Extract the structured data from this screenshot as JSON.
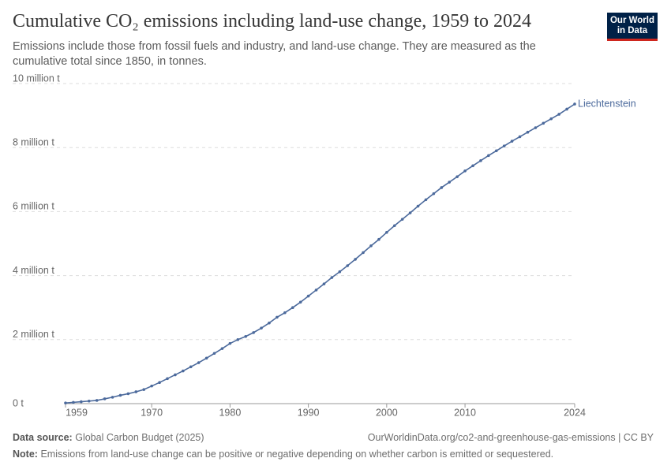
{
  "header": {
    "logo": "Our World in Data"
  },
  "chart_data": {
    "type": "line",
    "title": "Cumulative CO₂ emissions including land-use change, 1959 to 2024",
    "subtitle": "Emissions include those from fossil fuels and industry, and land-use change. They are measured as the cumulative total since 1850, in tonnes.",
    "x": [
      1959,
      1960,
      1961,
      1962,
      1963,
      1964,
      1965,
      1966,
      1967,
      1968,
      1969,
      1970,
      1971,
      1972,
      1973,
      1974,
      1975,
      1976,
      1977,
      1978,
      1979,
      1980,
      1981,
      1982,
      1983,
      1984,
      1985,
      1986,
      1987,
      1988,
      1989,
      1990,
      1991,
      1992,
      1993,
      1994,
      1995,
      1996,
      1997,
      1998,
      1999,
      2000,
      2001,
      2002,
      2003,
      2004,
      2005,
      2006,
      2007,
      2008,
      2009,
      2010,
      2011,
      2012,
      2013,
      2014,
      2015,
      2016,
      2017,
      2018,
      2019,
      2020,
      2021,
      2022,
      2023,
      2024
    ],
    "series": [
      {
        "name": "Liechtenstein",
        "color": "#4c6a9c",
        "values": [
          20000,
          40000,
          60000,
          80000,
          100000,
          150000,
          200000,
          260000,
          310000,
          370000,
          440000,
          550000,
          660000,
          780000,
          900000,
          1020000,
          1150000,
          1280000,
          1420000,
          1570000,
          1720000,
          1880000,
          2000000,
          2100000,
          2220000,
          2360000,
          2520000,
          2700000,
          2840000,
          3000000,
          3170000,
          3360000,
          3550000,
          3740000,
          3940000,
          4120000,
          4310000,
          4510000,
          4720000,
          4930000,
          5130000,
          5350000,
          5560000,
          5760000,
          5960000,
          6170000,
          6370000,
          6560000,
          6750000,
          6920000,
          7090000,
          7270000,
          7430000,
          7590000,
          7750000,
          7900000,
          8050000,
          8200000,
          8340000,
          8480000,
          8620000,
          8760000,
          8900000,
          9040000,
          9200000,
          9360000
        ]
      }
    ],
    "xlim": [
      1959,
      2024
    ],
    "xticks": [
      1959,
      1970,
      1980,
      1990,
      2000,
      2010,
      2024
    ],
    "ylim": [
      0,
      10000000
    ],
    "yticks": [
      {
        "value": 0,
        "label": "0 t"
      },
      {
        "value": 2000000,
        "label": "2 million t"
      },
      {
        "value": 4000000,
        "label": "4 million t"
      },
      {
        "value": 6000000,
        "label": "6 million t"
      },
      {
        "value": 8000000,
        "label": "8 million t"
      },
      {
        "value": 10000000,
        "label": "10 million t"
      }
    ],
    "grid": true
  },
  "footer": {
    "source_label": "Data source:",
    "source": "Global Carbon Budget (2025)",
    "url": "OurWorldinData.org/co2-and-greenhouse-gas-emissions | CC BY",
    "note_label": "Note:",
    "note": "Emissions from land-use change can be positive or negative depending on whether carbon is emitted or sequestered."
  }
}
